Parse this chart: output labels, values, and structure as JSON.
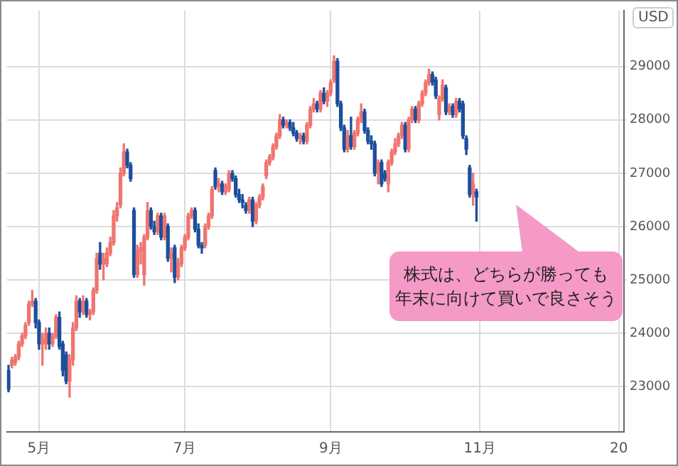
{
  "chart_data": {
    "type": "candlestick",
    "ylabel": "USD",
    "annotations": [
      "株式は、どちらが勝っても",
      "年末に向けて買いで良さそう"
    ],
    "categories": [
      null,
      null,
      null,
      null,
      null,
      null,
      null,
      null,
      null,
      "5月",
      null,
      null,
      null,
      null,
      null,
      null,
      null,
      null,
      null,
      null,
      null,
      null,
      null,
      null,
      null,
      null,
      null,
      null,
      null,
      null,
      null,
      null,
      null,
      null,
      null,
      null,
      null,
      null,
      null,
      null,
      null,
      null,
      null,
      null,
      null,
      null,
      null,
      null,
      null,
      null,
      null,
      null,
      "7月",
      null,
      null,
      null,
      null,
      null,
      null,
      null,
      null,
      null,
      null,
      null,
      null,
      null,
      null,
      null,
      null,
      null,
      null,
      null,
      null,
      null,
      null,
      null,
      null,
      null,
      null,
      null,
      null,
      null,
      null,
      null,
      null,
      null,
      null,
      null,
      null,
      null,
      null,
      null,
      null,
      null,
      null,
      "9月",
      null,
      null,
      null,
      null,
      null,
      null,
      null,
      null,
      null,
      null,
      null,
      null,
      null,
      null,
      null,
      null,
      null,
      null,
      null,
      null,
      null,
      null,
      null,
      null,
      null,
      null,
      null,
      null,
      null,
      null,
      null,
      null,
      null,
      null,
      null,
      null,
      null,
      null,
      null,
      null,
      null,
      null,
      null,
      "11月",
      null,
      null,
      null,
      null,
      null,
      null,
      null,
      null,
      null,
      null,
      null,
      null,
      null,
      null,
      null,
      null,
      null,
      null,
      null,
      null,
      null,
      null,
      null,
      null,
      null,
      null,
      null,
      null,
      null,
      null,
      null,
      null,
      null,
      null,
      null,
      null,
      null,
      null,
      null,
      null,
      "20",
      null
    ],
    "ohlc": [
      [
        23300,
        23400,
        22900,
        22950
      ],
      [
        23400,
        23550,
        23350,
        23500
      ],
      [
        23450,
        23600,
        23400,
        23550
      ],
      [
        23550,
        23850,
        23500,
        23800
      ],
      [
        23800,
        24000,
        23750,
        23950
      ],
      [
        23950,
        24200,
        23900,
        24150
      ],
      [
        24200,
        24600,
        24150,
        24550
      ],
      [
        24550,
        24800,
        24500,
        24600
      ],
      [
        24600,
        24650,
        24100,
        24200
      ],
      [
        24200,
        24250,
        23700,
        23800
      ],
      [
        23800,
        24000,
        23400,
        23900
      ],
      [
        23800,
        24100,
        23700,
        24000
      ],
      [
        24000,
        24100,
        23700,
        23800
      ],
      [
        23800,
        24000,
        23750,
        23950
      ],
      [
        23950,
        24350,
        23900,
        24300
      ],
      [
        24300,
        24400,
        23700,
        23750
      ],
      [
        23800,
        23850,
        23200,
        23300
      ],
      [
        23600,
        23650,
        23050,
        23100
      ],
      [
        23100,
        23600,
        22800,
        23500
      ],
      [
        23500,
        24200,
        23400,
        24100
      ],
      [
        24100,
        24700,
        24050,
        24600
      ],
      [
        24600,
        24650,
        24300,
        24400
      ],
      [
        24400,
        24700,
        24350,
        24600
      ],
      [
        24600,
        24650,
        24300,
        24350
      ],
      [
        24350,
        24450,
        24250,
        24400
      ],
      [
        24400,
        24850,
        24350,
        24800
      ],
      [
        24800,
        25500,
        24750,
        25400
      ],
      [
        25500,
        25700,
        25200,
        25300
      ],
      [
        25300,
        25500,
        25000,
        25400
      ],
      [
        25300,
        25600,
        25250,
        25500
      ],
      [
        25500,
        25800,
        25450,
        25700
      ],
      [
        25700,
        26300,
        25650,
        26200
      ],
      [
        26200,
        26450,
        26100,
        26350
      ],
      [
        26400,
        27100,
        26350,
        27000
      ],
      [
        27000,
        27550,
        26950,
        27400
      ],
      [
        27400,
        27450,
        27100,
        27150
      ],
      [
        27150,
        27200,
        26850,
        26900
      ],
      [
        26300,
        26350,
        25050,
        25100
      ],
      [
        25100,
        25650,
        25050,
        25550
      ],
      [
        25550,
        25700,
        25300,
        25600
      ],
      [
        25100,
        25850,
        24900,
        25800
      ],
      [
        25800,
        26450,
        25750,
        26300
      ],
      [
        26300,
        26350,
        25950,
        26000
      ],
      [
        26000,
        26100,
        25850,
        25900
      ],
      [
        25900,
        26250,
        25850,
        26200
      ],
      [
        26200,
        26250,
        25750,
        25800
      ],
      [
        25800,
        26250,
        25750,
        26200
      ],
      [
        26000,
        26050,
        25350,
        25400
      ],
      [
        25400,
        25600,
        25150,
        25500
      ],
      [
        25600,
        25650,
        24950,
        25050
      ],
      [
        25050,
        25400,
        25000,
        25300
      ],
      [
        25300,
        25650,
        25250,
        25600
      ],
      [
        25600,
        25850,
        25550,
        25800
      ],
      [
        25800,
        26250,
        25750,
        26200
      ],
      [
        26200,
        26350,
        26150,
        26300
      ],
      [
        26300,
        26350,
        25900,
        25950
      ],
      [
        25950,
        26050,
        25600,
        25650
      ],
      [
        25650,
        25700,
        25500,
        25600
      ],
      [
        25650,
        26050,
        25600,
        26000
      ],
      [
        26000,
        26250,
        25950,
        26200
      ],
      [
        26200,
        26750,
        26150,
        26700
      ],
      [
        27050,
        27100,
        26700,
        26750
      ],
      [
        26750,
        26900,
        26650,
        26800
      ],
      [
        26800,
        26850,
        26600,
        26650
      ],
      [
        26650,
        26800,
        26600,
        26750
      ],
      [
        26700,
        27050,
        26650,
        27000
      ],
      [
        27000,
        27050,
        26850,
        26900
      ],
      [
        26900,
        26950,
        26550,
        26600
      ],
      [
        26600,
        26700,
        26450,
        26500
      ],
      [
        26500,
        26600,
        26350,
        26450
      ],
      [
        26400,
        26450,
        26250,
        26300
      ],
      [
        26300,
        26550,
        26250,
        26500
      ],
      [
        26500,
        26550,
        26000,
        26100
      ],
      [
        26100,
        26450,
        26050,
        26400
      ],
      [
        26400,
        26600,
        26350,
        26550
      ],
      [
        26550,
        26800,
        26500,
        26750
      ],
      [
        26950,
        27250,
        26900,
        27200
      ],
      [
        27200,
        27350,
        27150,
        27300
      ],
      [
        27300,
        27550,
        27250,
        27500
      ],
      [
        27500,
        27750,
        27450,
        27700
      ],
      [
        27700,
        28100,
        27650,
        28000
      ],
      [
        28000,
        28050,
        27850,
        27900
      ],
      [
        27900,
        28000,
        27850,
        27950
      ],
      [
        27950,
        28000,
        27800,
        27850
      ],
      [
        27850,
        27950,
        27700,
        27750
      ],
      [
        27750,
        27800,
        27600,
        27650
      ],
      [
        27650,
        27750,
        27550,
        27700
      ],
      [
        27700,
        27750,
        27550,
        27600
      ],
      [
        27600,
        27950,
        27550,
        27900
      ],
      [
        27900,
        28250,
        27850,
        28200
      ],
      [
        28200,
        28400,
        28150,
        28300
      ],
      [
        28300,
        28350,
        28150,
        28200
      ],
      [
        28200,
        28550,
        28150,
        28500
      ],
      [
        28500,
        28600,
        28300,
        28350
      ],
      [
        28350,
        28550,
        28250,
        28500
      ],
      [
        28500,
        28750,
        28450,
        28700
      ],
      [
        28750,
        29200,
        28700,
        29100
      ],
      [
        29100,
        29150,
        28250,
        28300
      ],
      [
        28300,
        28350,
        27800,
        27850
      ],
      [
        27850,
        27900,
        27400,
        27450
      ],
      [
        27450,
        27800,
        27400,
        27700
      ],
      [
        27700,
        28050,
        27450,
        27500
      ],
      [
        27500,
        27800,
        27450,
        27750
      ],
      [
        27750,
        28050,
        27700,
        28000
      ],
      [
        28000,
        28300,
        27950,
        28150
      ],
      [
        28150,
        28200,
        27750,
        27800
      ],
      [
        27800,
        27850,
        27550,
        27600
      ],
      [
        27600,
        27700,
        27450,
        27550
      ],
      [
        27550,
        27600,
        26950,
        27000
      ],
      [
        27000,
        27250,
        26800,
        27200
      ],
      [
        27200,
        27250,
        26750,
        26800
      ],
      [
        27000,
        27050,
        26850,
        26900
      ],
      [
        26800,
        27250,
        26650,
        27200
      ],
      [
        27200,
        27450,
        27150,
        27400
      ],
      [
        27400,
        27650,
        27350,
        27550
      ],
      [
        27550,
        27750,
        27500,
        27700
      ],
      [
        27700,
        27950,
        27650,
        27900
      ],
      [
        27900,
        27950,
        27400,
        27450
      ],
      [
        27450,
        28050,
        27400,
        28000
      ],
      [
        28000,
        28250,
        27950,
        28200
      ],
      [
        28200,
        28250,
        27950,
        28000
      ],
      [
        28000,
        28350,
        27950,
        28300
      ],
      [
        28300,
        28550,
        28250,
        28500
      ],
      [
        28500,
        28750,
        28450,
        28700
      ],
      [
        28700,
        28950,
        28650,
        28850
      ],
      [
        28850,
        28900,
        28650,
        28700
      ],
      [
        28750,
        28800,
        28400,
        28450
      ],
      [
        28100,
        28450,
        28000,
        28400
      ],
      [
        28400,
        28750,
        28350,
        28650
      ],
      [
        28600,
        28650,
        28100,
        28150
      ],
      [
        28150,
        28300,
        28100,
        28250
      ],
      [
        28250,
        28300,
        28050,
        28100
      ],
      [
        28100,
        28400,
        28050,
        28350
      ],
      [
        28350,
        28400,
        28150,
        28200
      ],
      [
        28300,
        28350,
        27650,
        27700
      ],
      [
        27650,
        27700,
        27350,
        27450
      ],
      [
        27100,
        27150,
        26550,
        26600
      ],
      [
        26600,
        27000,
        26400,
        26800
      ],
      [
        26650,
        26700,
        26100,
        26550
      ],
      null,
      null,
      null,
      null,
      null,
      null,
      null,
      null,
      null,
      null,
      null,
      null,
      null,
      null,
      null,
      null,
      null,
      null,
      null,
      null,
      null,
      null,
      null,
      null,
      null,
      null,
      null,
      null,
      null,
      null,
      null,
      null,
      null,
      null,
      null,
      null,
      null,
      null,
      null,
      null,
      null,
      null,
      null
    ],
    "colors": [
      "#1c4f9c",
      "#f07470",
      "#f07470",
      "#f07470",
      "#f07470",
      "#f07470",
      "#f07470",
      "#f07470",
      "#1c4f9c",
      "#1c4f9c",
      "#f07470",
      "#f07470",
      "#1c4f9c",
      "#f07470",
      "#f07470",
      "#1c4f9c",
      "#1c4f9c",
      "#1c4f9c",
      "#f07470",
      "#f07470",
      "#f07470",
      "#1c4f9c",
      "#f07470",
      "#1c4f9c",
      "#f07470",
      "#f07470",
      "#f07470",
      "#1c4f9c",
      "#f07470",
      "#f07470",
      "#f07470",
      "#f07470",
      "#f07470",
      "#f07470",
      "#f07470",
      "#1c4f9c",
      "#1c4f9c",
      "#1c4f9c",
      "#f07470",
      "#f07470",
      "#f07470",
      "#f07470",
      "#1c4f9c",
      "#1c4f9c",
      "#f07470",
      "#1c4f9c",
      "#f07470",
      "#1c4f9c",
      "#f07470",
      "#1c4f9c",
      "#f07470",
      "#f07470",
      "#f07470",
      "#f07470",
      "#f07470",
      "#1c4f9c",
      "#1c4f9c",
      "#1c4f9c",
      "#f07470",
      "#f07470",
      "#f07470",
      "#1c4f9c",
      "#f07470",
      "#1c4f9c",
      "#f07470",
      "#f07470",
      "#1c4f9c",
      "#1c4f9c",
      "#1c4f9c",
      "#1c4f9c",
      "#1c4f9c",
      "#f07470",
      "#1c4f9c",
      "#f07470",
      "#f07470",
      "#f07470",
      "#f07470",
      "#f07470",
      "#f07470",
      "#f07470",
      "#f07470",
      "#1c4f9c",
      "#f07470",
      "#1c4f9c",
      "#1c4f9c",
      "#1c4f9c",
      "#f07470",
      "#1c4f9c",
      "#f07470",
      "#f07470",
      "#f07470",
      "#1c4f9c",
      "#f07470",
      "#1c4f9c",
      "#f07470",
      "#f07470",
      "#f07470",
      "#1c4f9c",
      "#1c4f9c",
      "#1c4f9c",
      "#f07470",
      "#1c4f9c",
      "#f07470",
      "#f07470",
      "#f07470",
      "#1c4f9c",
      "#1c4f9c",
      "#1c4f9c",
      "#1c4f9c",
      "#f07470",
      "#1c4f9c",
      "#1c4f9c",
      "#f07470",
      "#f07470",
      "#f07470",
      "#f07470",
      "#f07470",
      "#1c4f9c",
      "#f07470",
      "#f07470",
      "#1c4f9c",
      "#f07470",
      "#f07470",
      "#f07470",
      "#f07470",
      "#1c4f9c",
      "#1c4f9c",
      "#f07470",
      "#f07470",
      "#1c4f9c",
      "#f07470",
      "#1c4f9c",
      "#f07470",
      "#1c4f9c",
      "#1c4f9c",
      "#1c4f9c",
      "#1c4f9c",
      "#f07470",
      "#1c4f9c",
      null,
      null,
      null,
      null,
      null,
      null,
      null,
      null,
      null,
      null,
      null,
      null,
      null,
      null,
      null,
      null,
      null,
      null,
      null,
      null,
      null,
      null,
      null,
      null,
      null,
      null,
      null,
      null,
      null,
      null,
      null,
      null,
      null,
      null,
      null,
      null,
      null,
      null,
      null,
      null,
      null,
      null,
      null
    ],
    "ylim": [
      22150,
      30050
    ],
    "yticks": [
      23000,
      24000,
      25000,
      26000,
      27000,
      28000,
      29000
    ],
    "grid": true
  }
}
